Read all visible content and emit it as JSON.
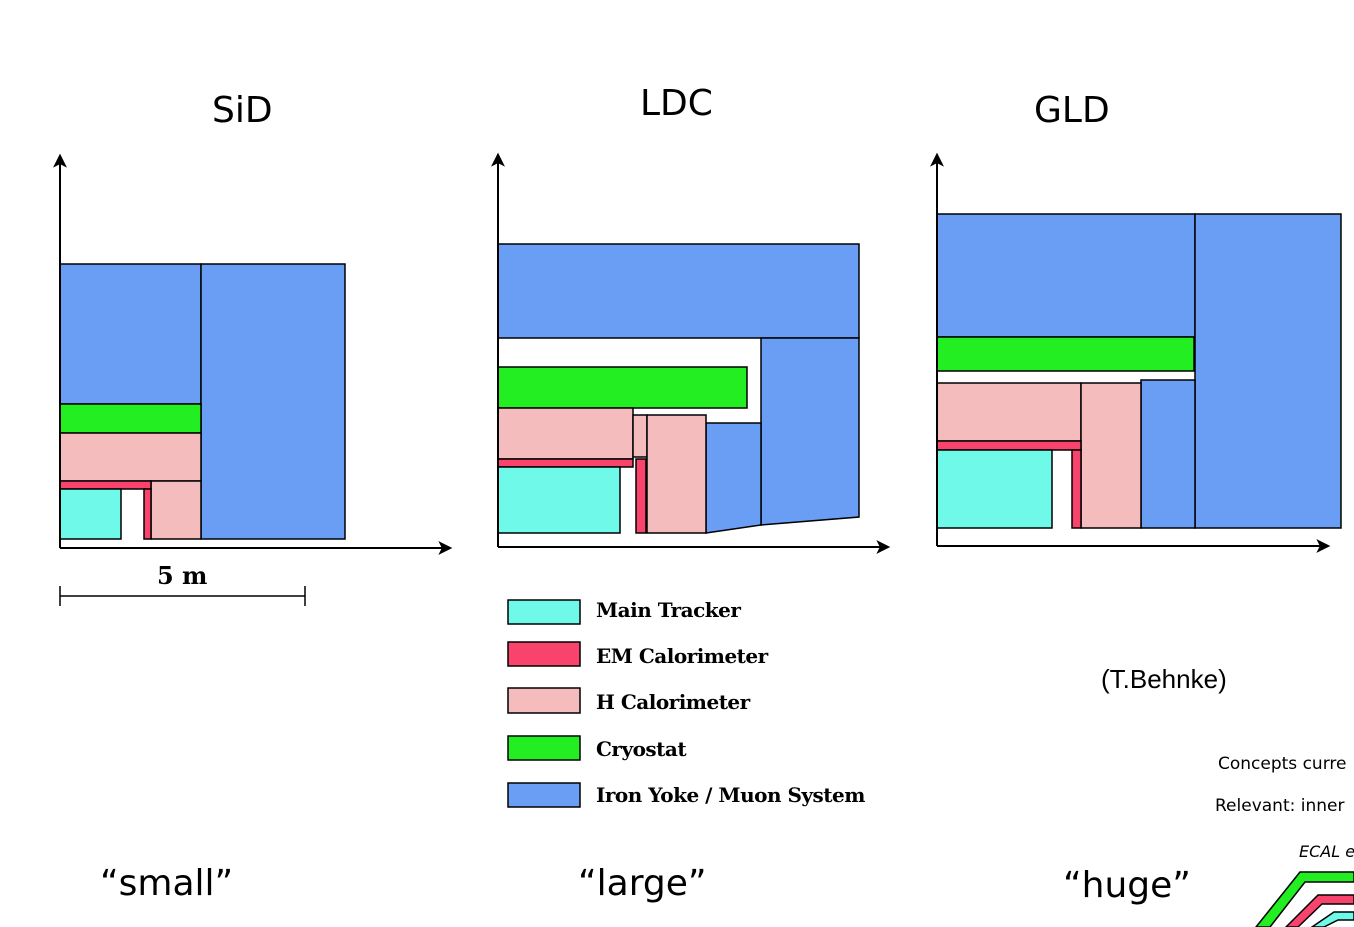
{
  "detectors": [
    {
      "title": "SiD",
      "size_word": "“small”"
    },
    {
      "title": "LDC",
      "size_word": "“large”"
    },
    {
      "title": "GLD",
      "size_word": "“huge”"
    }
  ],
  "scale": {
    "label": "5 m"
  },
  "legend": [
    {
      "label": "Main Tracker",
      "color": "#6ef9e8"
    },
    {
      "label": "EM Calorimeter",
      "color": "#f8446c"
    },
    {
      "label": "H Calorimeter",
      "color": "#f4bcbc"
    },
    {
      "label": "Cryostat",
      "color": "#22ee22"
    },
    {
      "label": "Iron Yoke / Muon System",
      "color": "#6a9ef5"
    }
  ],
  "credit": "(T.Behnke)",
  "side_notes": {
    "line1": "Concepts curre",
    "line2": "Relevant: inner",
    "line3": "ECAL e"
  },
  "colors": {
    "tracker": "#6ef9e8",
    "ecal": "#f8446c",
    "hcal": "#f4bcbc",
    "cryostat": "#22ee22",
    "yoke": "#6a9ef5",
    "axis": "#000000"
  }
}
